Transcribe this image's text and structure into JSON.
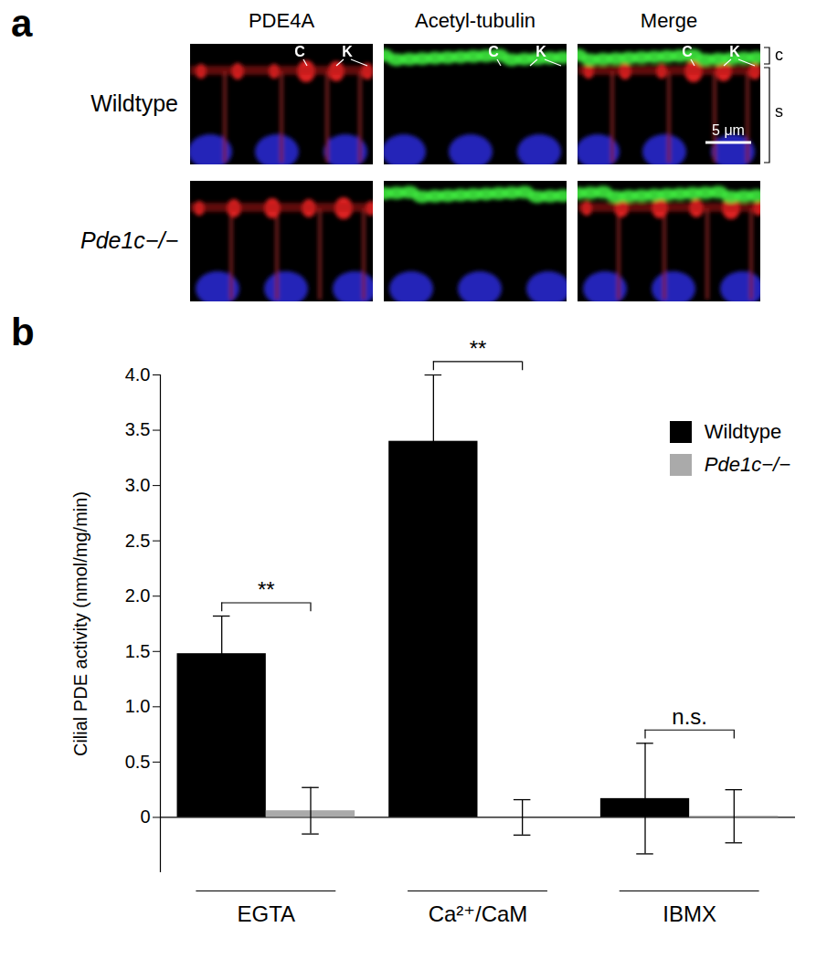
{
  "chart_data": {
    "type": "bar",
    "panel_label": "b",
    "categories": [
      "EGTA",
      "Ca²⁺/CaM",
      "IBMX"
    ],
    "series": [
      {
        "name": "Wildtype",
        "color": "#000000",
        "values": [
          1.48,
          3.4,
          0.17
        ],
        "errors": [
          0.34,
          0.6,
          0.5
        ]
      },
      {
        "name": "Pde1c−/−",
        "color": "#aaaaaa",
        "values": [
          0.06,
          0.0,
          0.01
        ],
        "errors": [
          0.21,
          0.16,
          0.24
        ]
      }
    ],
    "ylabel": "Cilial PDE activity (nmol/mg/min)",
    "ylim": [
      -0.5,
      4.0
    ],
    "yticks": [
      0,
      0.5,
      {
        "value": 1,
        "label": "1.0"
      },
      1.5,
      {
        "value": 2,
        "label": "2.0"
      },
      2.5,
      {
        "value": 3,
        "label": "3.0"
      },
      3.5,
      {
        "value": 4,
        "label": "4.0"
      }
    ],
    "significance": [
      "**",
      "**",
      "n.s."
    ],
    "legend": "top-right",
    "grid": false
  },
  "panel_a": {
    "label": "a",
    "columns": [
      "PDE4A",
      "Acetyl-tubulin",
      "Merge"
    ],
    "rows": [
      "Wildtype",
      "Pde1c−/−"
    ],
    "structure_labels": [
      "C",
      "K"
    ],
    "layer_labels": [
      "c",
      "s"
    ],
    "scale_bar": "5 μm"
  }
}
